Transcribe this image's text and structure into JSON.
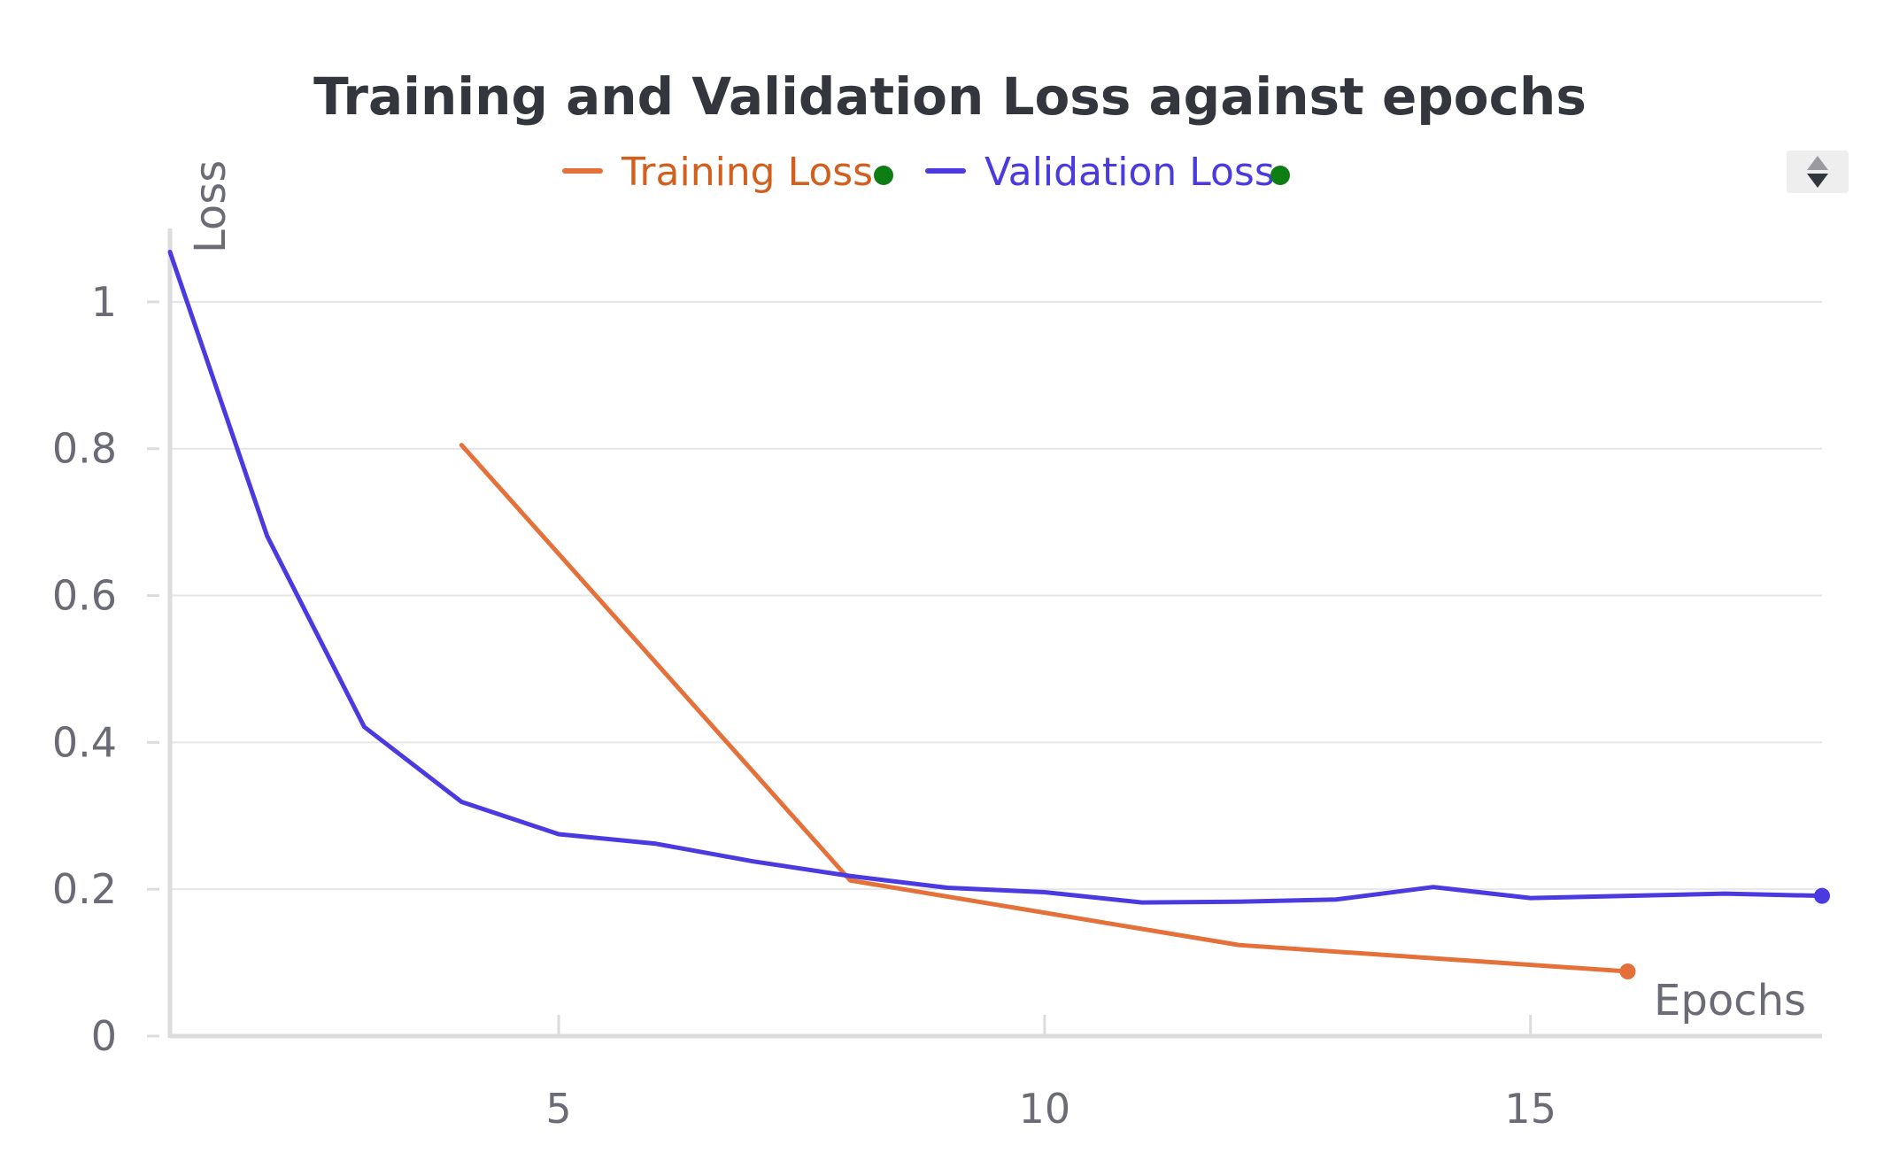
{
  "chart_data": {
    "type": "line",
    "title": "Training and Validation Loss against epochs",
    "xlabel": "Epochs",
    "ylabel": "Loss",
    "xlim": [
      1,
      18
    ],
    "ylim": [
      0,
      1.1
    ],
    "x_ticks": [
      5,
      10,
      15
    ],
    "y_ticks": [
      0,
      0.2,
      0.4,
      0.6,
      0.8,
      1
    ],
    "y_tick_labels": [
      "0",
      "0.2",
      "0.4",
      "0.6",
      "0.8",
      "1"
    ],
    "x_tick_labels": [
      "5",
      "10",
      "15"
    ],
    "grid": true,
    "legend_position": "top-center",
    "series": [
      {
        "name": "Training Loss",
        "color": "#e4703a",
        "text_color": "#d35f1e",
        "x": [
          4,
          8,
          12,
          16
        ],
        "values": [
          0.805,
          0.212,
          0.124,
          0.088
        ]
      },
      {
        "name": "Validation Loss",
        "color": "#4a3ae0",
        "text_color": "#4a3ae0",
        "x": [
          1,
          2,
          3,
          4,
          5,
          6,
          7,
          8,
          9,
          10,
          11,
          12,
          13,
          14,
          15,
          16,
          17,
          18
        ],
        "values": [
          1.068,
          0.681,
          0.421,
          0.319,
          0.275,
          0.262,
          0.238,
          0.218,
          0.202,
          0.196,
          0.182,
          0.183,
          0.186,
          0.203,
          0.188,
          0.191,
          0.194,
          0.191
        ]
      }
    ]
  },
  "legend": {
    "status_dot_color": "#0e7d14"
  },
  "sort_toggle": {
    "icon": "sort-icon"
  }
}
